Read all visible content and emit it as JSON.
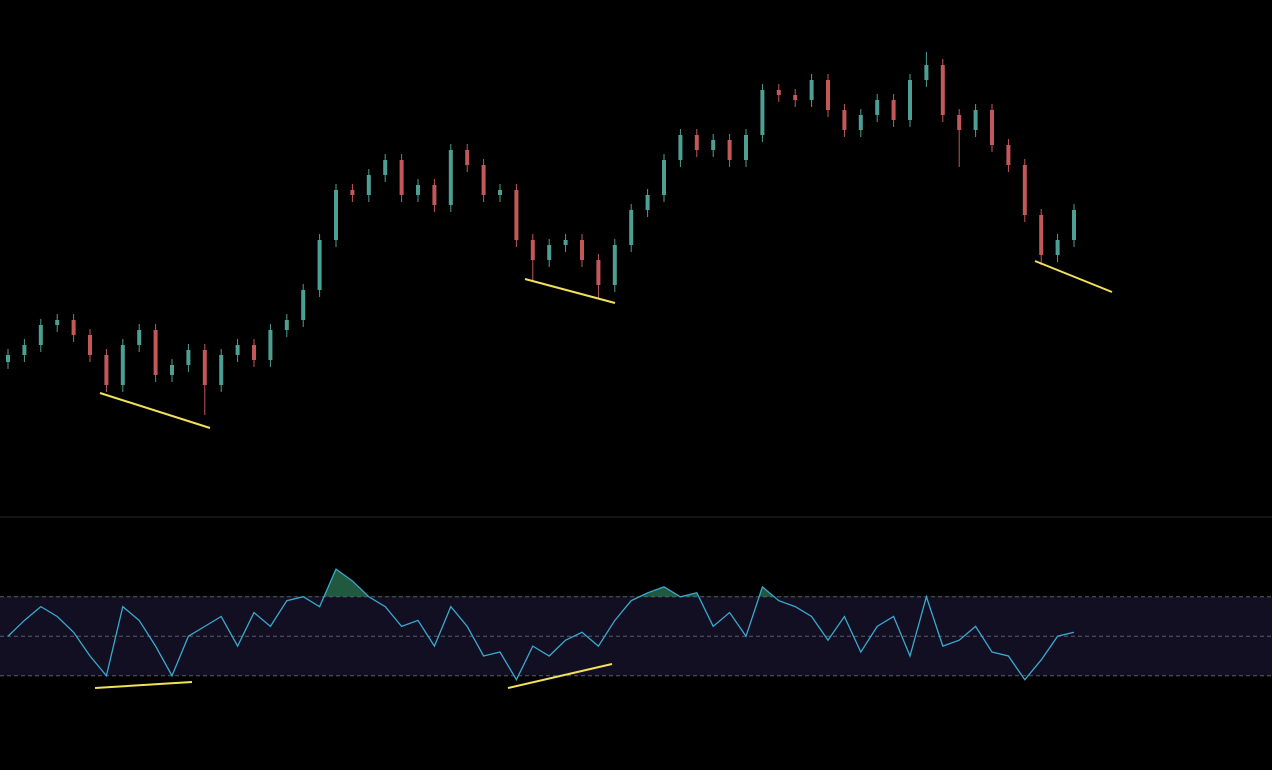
{
  "chart_data": [
    {
      "type": "candlestick",
      "up_color": "#4e9f93",
      "down_color": "#c2585a",
      "ylim": [
        0,
        517
      ],
      "open": [
        155,
        162,
        172,
        192,
        197,
        182,
        162,
        132,
        172,
        187,
        142,
        152,
        167,
        132,
        162,
        172,
        157,
        187,
        197,
        227,
        277,
        327,
        322,
        342,
        357,
        322,
        332,
        312,
        367,
        352,
        322,
        327,
        277,
        257,
        272,
        277,
        257,
        232,
        272,
        307,
        322,
        357,
        382,
        367,
        377,
        357,
        382,
        427,
        422,
        417,
        437,
        407,
        387,
        402,
        417,
        397,
        437,
        452,
        402,
        387,
        407,
        372,
        352,
        302,
        262,
        277
      ],
      "high": [
        168,
        178,
        198,
        203,
        203,
        188,
        168,
        178,
        193,
        193,
        158,
        173,
        173,
        168,
        178,
        178,
        193,
        203,
        233,
        283,
        333,
        333,
        348,
        363,
        363,
        338,
        338,
        373,
        373,
        358,
        333,
        333,
        283,
        278,
        283,
        283,
        263,
        278,
        313,
        328,
        363,
        388,
        388,
        383,
        383,
        388,
        433,
        433,
        428,
        443,
        443,
        413,
        408,
        423,
        423,
        443,
        465,
        458,
        408,
        413,
        413,
        378,
        358,
        308,
        283,
        313
      ],
      "low": [
        148,
        155,
        165,
        185,
        175,
        155,
        125,
        125,
        165,
        135,
        135,
        145,
        102,
        125,
        155,
        150,
        150,
        180,
        190,
        220,
        270,
        315,
        315,
        335,
        315,
        315,
        305,
        305,
        345,
        315,
        315,
        270,
        235,
        250,
        265,
        250,
        219,
        225,
        265,
        300,
        315,
        350,
        360,
        360,
        350,
        350,
        375,
        415,
        410,
        410,
        400,
        380,
        380,
        395,
        390,
        390,
        430,
        395,
        350,
        380,
        365,
        345,
        295,
        252,
        255,
        270
      ],
      "close": [
        162,
        172,
        192,
        197,
        182,
        162,
        132,
        172,
        187,
        142,
        152,
        167,
        132,
        162,
        172,
        157,
        187,
        197,
        227,
        277,
        327,
        322,
        342,
        357,
        322,
        332,
        312,
        367,
        352,
        322,
        327,
        277,
        257,
        272,
        277,
        257,
        232,
        272,
        307,
        322,
        357,
        382,
        367,
        377,
        357,
        382,
        427,
        422,
        417,
        437,
        407,
        387,
        402,
        417,
        397,
        437,
        452,
        402,
        387,
        407,
        372,
        352,
        302,
        262,
        277,
        307
      ]
    },
    {
      "type": "line",
      "ylim": [
        0,
        100
      ],
      "yticks": [
        30,
        50,
        70
      ],
      "band_color": "#120f22",
      "overbought_color": "#2e7d5b",
      "series": [
        {
          "color": "#3aa9cf",
          "values": [
            50,
            58,
            65,
            60,
            52,
            40,
            30,
            65,
            58,
            45,
            30,
            50,
            55,
            60,
            45,
            62,
            55,
            68,
            70,
            65,
            84,
            78,
            70,
            65,
            55,
            58,
            45,
            65,
            55,
            40,
            42,
            28,
            45,
            40,
            48,
            52,
            45,
            58,
            68,
            72,
            75,
            70,
            72,
            55,
            62,
            50,
            75,
            68,
            65,
            60,
            48,
            60,
            42,
            55,
            60,
            40,
            70,
            45,
            48,
            55,
            42,
            40,
            28,
            38,
            50,
            52
          ]
        }
      ]
    }
  ]
}
